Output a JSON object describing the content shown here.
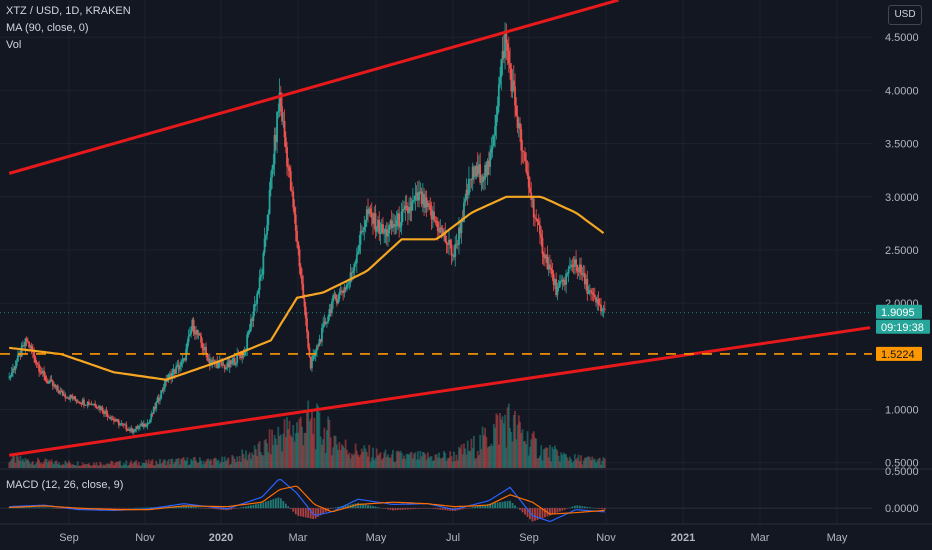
{
  "header": {
    "symbol_line": "XTZ / USD, 1D, KRAKEN",
    "ma_legend": "MA (90, close, 0)",
    "vol_legend": "Vol",
    "currency_button": "USD"
  },
  "macd": {
    "legend": "MACD (12, 26, close, 9)"
  },
  "price_axis": {
    "ticks": [
      "4.5000",
      "4.0000",
      "3.5000",
      "3.0000",
      "2.5000",
      "2.0000",
      "1.0000",
      "0.5000"
    ]
  },
  "macd_axis": {
    "ticks": [
      "0.5000",
      "0.0000"
    ]
  },
  "badges": {
    "last_price": "1.9095",
    "countdown": "09:19:38",
    "level": "1.5224"
  },
  "colors": {
    "background": "#131722",
    "up": "#26a69a",
    "down": "#ef5350",
    "ma": "#f5a623",
    "trendline": "#e8191b",
    "level_line": "#ff9800",
    "macd_line": "#2962ff",
    "signal_line": "#ff6d00"
  },
  "chart_data": {
    "type": "candlestick",
    "time_axis_labels": [
      "Sep",
      "Nov",
      "2020",
      "Mar",
      "May",
      "Jul",
      "Sep",
      "Nov",
      "2021",
      "Mar",
      "May"
    ],
    "time_axis_values": [
      "2019-09",
      "2019-11",
      "2020-01",
      "2020-03",
      "2020-05",
      "2020-07",
      "2020-09",
      "2020-11",
      "2021-01",
      "2021-03",
      "2021-05"
    ],
    "price_range": [
      0.45,
      4.85
    ],
    "horizontal_level": 1.5224,
    "last_price": 1.9095,
    "trendlines": [
      {
        "from": {
          "date": "2019-07-15",
          "price": 3.22
        },
        "to": {
          "date": "2020-11-15",
          "price": 4.85
        }
      },
      {
        "from": {
          "date": "2019-07-15",
          "price": 0.57
        },
        "to": {
          "date": "2021-06-05",
          "price": 1.77
        }
      }
    ],
    "price_series": [
      {
        "date": "2019-07-15",
        "price": 1.3
      },
      {
        "date": "2019-07-29",
        "price": 1.65
      },
      {
        "date": "2019-08-12",
        "price": 1.3
      },
      {
        "date": "2019-08-26",
        "price": 1.15
      },
      {
        "date": "2019-09-09",
        "price": 1.08
      },
      {
        "date": "2019-09-23",
        "price": 1.05
      },
      {
        "date": "2019-10-07",
        "price": 0.9
      },
      {
        "date": "2019-10-21",
        "price": 0.8
      },
      {
        "date": "2019-11-04",
        "price": 0.88
      },
      {
        "date": "2019-11-18",
        "price": 1.28
      },
      {
        "date": "2019-12-02",
        "price": 1.45
      },
      {
        "date": "2019-12-09",
        "price": 1.8
      },
      {
        "date": "2019-12-23",
        "price": 1.45
      },
      {
        "date": "2020-01-06",
        "price": 1.4
      },
      {
        "date": "2020-01-20",
        "price": 1.55
      },
      {
        "date": "2020-02-03",
        "price": 2.3
      },
      {
        "date": "2020-02-17",
        "price": 3.95
      },
      {
        "date": "2020-03-02",
        "price": 2.6
      },
      {
        "date": "2020-03-13",
        "price": 1.4
      },
      {
        "date": "2020-03-30",
        "price": 2.0
      },
      {
        "date": "2020-04-13",
        "price": 2.2
      },
      {
        "date": "2020-04-27",
        "price": 2.85
      },
      {
        "date": "2020-05-11",
        "price": 2.65
      },
      {
        "date": "2020-05-25",
        "price": 2.8
      },
      {
        "date": "2020-06-08",
        "price": 3.0
      },
      {
        "date": "2020-06-22",
        "price": 2.75
      },
      {
        "date": "2020-07-06",
        "price": 2.45
      },
      {
        "date": "2020-07-20",
        "price": 3.2
      },
      {
        "date": "2020-08-03",
        "price": 3.25
      },
      {
        "date": "2020-08-16",
        "price": 4.5
      },
      {
        "date": "2020-08-30",
        "price": 3.4
      },
      {
        "date": "2020-09-13",
        "price": 2.6
      },
      {
        "date": "2020-09-27",
        "price": 2.1
      },
      {
        "date": "2020-10-11",
        "price": 2.4
      },
      {
        "date": "2020-10-25",
        "price": 2.05
      },
      {
        "date": "2020-11-04",
        "price": 1.91
      }
    ],
    "ma_series": [
      {
        "date": "2019-07-15",
        "price": 1.58
      },
      {
        "date": "2019-08-26",
        "price": 1.52
      },
      {
        "date": "2019-10-07",
        "price": 1.35
      },
      {
        "date": "2019-11-18",
        "price": 1.28
      },
      {
        "date": "2019-12-30",
        "price": 1.45
      },
      {
        "date": "2020-02-10",
        "price": 1.65
      },
      {
        "date": "2020-03-02",
        "price": 2.05
      },
      {
        "date": "2020-03-23",
        "price": 2.1
      },
      {
        "date": "2020-04-27",
        "price": 2.3
      },
      {
        "date": "2020-05-25",
        "price": 2.6
      },
      {
        "date": "2020-06-22",
        "price": 2.6
      },
      {
        "date": "2020-07-20",
        "price": 2.85
      },
      {
        "date": "2020-08-17",
        "price": 3.0
      },
      {
        "date": "2020-09-14",
        "price": 3.0
      },
      {
        "date": "2020-10-12",
        "price": 2.85
      },
      {
        "date": "2020-11-04",
        "price": 2.65
      }
    ],
    "volume_range": [
      0,
      1
    ],
    "volume_series": [
      {
        "date": "2019-07-15",
        "volume": 0.15
      },
      {
        "date": "2019-08-12",
        "volume": 0.1
      },
      {
        "date": "2019-09-09",
        "volume": 0.08
      },
      {
        "date": "2019-10-07",
        "volume": 0.08
      },
      {
        "date": "2019-11-04",
        "volume": 0.09
      },
      {
        "date": "2019-12-02",
        "volume": 0.12
      },
      {
        "date": "2020-01-06",
        "volume": 0.12
      },
      {
        "date": "2020-02-03",
        "volume": 0.3
      },
      {
        "date": "2020-02-17",
        "volume": 0.55
      },
      {
        "date": "2020-03-13",
        "volume": 0.75
      },
      {
        "date": "2020-04-13",
        "volume": 0.3
      },
      {
        "date": "2020-05-11",
        "volume": 0.2
      },
      {
        "date": "2020-06-08",
        "volume": 0.18
      },
      {
        "date": "2020-07-06",
        "volume": 0.2
      },
      {
        "date": "2020-07-27",
        "volume": 0.4
      },
      {
        "date": "2020-08-16",
        "volume": 0.8
      },
      {
        "date": "2020-09-13",
        "volume": 0.3
      },
      {
        "date": "2020-10-11",
        "volume": 0.15
      },
      {
        "date": "2020-11-04",
        "volume": 0.12
      }
    ],
    "macd_range": [
      -0.2,
      0.5
    ],
    "macd_series": [
      {
        "date": "2019-07-15",
        "macd": 0.02,
        "signal": 0.01
      },
      {
        "date": "2019-08-12",
        "macd": 0.04,
        "signal": 0.03
      },
      {
        "date": "2019-09-09",
        "macd": -0.02,
        "signal": 0.0
      },
      {
        "date": "2019-10-07",
        "macd": -0.03,
        "signal": -0.02
      },
      {
        "date": "2019-11-04",
        "macd": -0.01,
        "signal": -0.02
      },
      {
        "date": "2019-12-02",
        "macd": 0.06,
        "signal": 0.03
      },
      {
        "date": "2020-01-06",
        "macd": -0.01,
        "signal": 0.02
      },
      {
        "date": "2020-02-03",
        "macd": 0.15,
        "signal": 0.08
      },
      {
        "date": "2020-02-17",
        "macd": 0.4,
        "signal": 0.25
      },
      {
        "date": "2020-03-02",
        "macd": 0.2,
        "signal": 0.3
      },
      {
        "date": "2020-03-16",
        "macd": -0.1,
        "signal": 0.05
      },
      {
        "date": "2020-03-30",
        "macd": -0.05,
        "signal": -0.05
      },
      {
        "date": "2020-04-20",
        "macd": 0.12,
        "signal": 0.05
      },
      {
        "date": "2020-05-18",
        "macd": 0.05,
        "signal": 0.08
      },
      {
        "date": "2020-06-15",
        "macd": 0.06,
        "signal": 0.06
      },
      {
        "date": "2020-07-06",
        "macd": -0.02,
        "signal": 0.02
      },
      {
        "date": "2020-08-03",
        "macd": 0.1,
        "signal": 0.04
      },
      {
        "date": "2020-08-20",
        "macd": 0.28,
        "signal": 0.18
      },
      {
        "date": "2020-09-07",
        "macd": -0.1,
        "signal": 0.08
      },
      {
        "date": "2020-09-21",
        "macd": -0.18,
        "signal": -0.08
      },
      {
        "date": "2020-10-12",
        "macd": -0.02,
        "signal": -0.06
      },
      {
        "date": "2020-11-04",
        "macd": -0.05,
        "signal": -0.03
      }
    ]
  }
}
